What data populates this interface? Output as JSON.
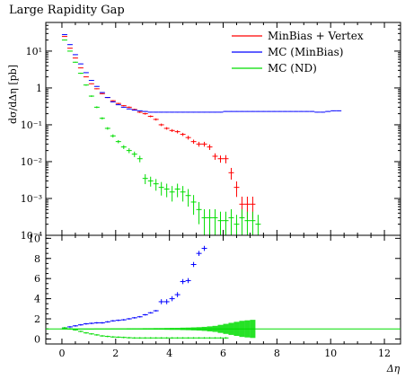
{
  "title": "Large Rapidity Gap",
  "chart_data": [
    {
      "type": "scatter",
      "panel": "main",
      "ylabel": "dσ/dΔη [pb]",
      "yscale": "log",
      "xlim": [
        -0.6,
        12.6
      ],
      "ylim": [
        0.0001,
        60
      ],
      "x_ticks": [
        0,
        2,
        4,
        6,
        8,
        10,
        12
      ],
      "y_ticks": [
        {
          "value": 0.0001,
          "label": "10⁻⁴"
        },
        {
          "value": 0.001,
          "label": "10⁻³"
        },
        {
          "value": 0.01,
          "label": "10⁻²"
        },
        {
          "value": 0.1,
          "label": "10⁻¹"
        },
        {
          "value": 1,
          "label": "1"
        },
        {
          "value": 10,
          "label": "10¹"
        }
      ],
      "legend_position": "top-right",
      "series": [
        {
          "name": "MinBias + Vertex",
          "color": "#ff0000",
          "x": [
            0.1,
            0.3,
            0.5,
            0.7,
            0.9,
            1.1,
            1.3,
            1.5,
            1.7,
            1.9,
            2.1,
            2.3,
            2.5,
            2.7,
            2.9,
            3.1,
            3.3,
            3.5,
            3.7,
            3.9,
            4.1,
            4.3,
            4.5,
            4.7,
            4.9,
            5.1,
            5.3,
            5.5,
            5.7,
            5.9,
            6.1,
            6.3,
            6.5,
            6.7,
            6.9,
            7.1
          ],
          "y": [
            25,
            12,
            6.5,
            3.5,
            2.0,
            1.3,
            0.95,
            0.7,
            0.55,
            0.45,
            0.38,
            0.33,
            0.3,
            0.26,
            0.22,
            0.2,
            0.17,
            0.14,
            0.1,
            0.08,
            0.07,
            0.065,
            0.055,
            0.045,
            0.035,
            0.03,
            0.03,
            0.025,
            0.014,
            0.012,
            0.012,
            0.005,
            0.002,
            0.0007,
            0.0007,
            0.0007
          ],
          "yerr_rel": [
            0.02,
            0.02,
            0.02,
            0.02,
            0.02,
            0.02,
            0.03,
            0.03,
            0.03,
            0.04,
            0.04,
            0.04,
            0.05,
            0.05,
            0.05,
            0.06,
            0.06,
            0.07,
            0.08,
            0.08,
            0.09,
            0.1,
            0.1,
            0.12,
            0.13,
            0.15,
            0.15,
            0.17,
            0.2,
            0.22,
            0.25,
            0.35,
            0.45,
            0.6,
            0.6,
            0.6
          ]
        },
        {
          "name": "MC (MinBias)",
          "color": "#0000ff",
          "x": [
            0.1,
            0.3,
            0.5,
            0.7,
            0.9,
            1.1,
            1.3,
            1.5,
            1.7,
            1.9,
            2.1,
            2.3,
            2.5,
            2.7,
            2.9,
            3.1,
            3.3,
            3.5,
            3.7,
            3.9,
            4.1,
            4.3,
            4.5,
            4.7,
            4.9,
            5.1,
            5.3,
            5.5,
            5.7,
            5.9,
            6.1,
            6.3,
            6.5,
            6.7,
            6.9,
            7.1,
            7.3,
            7.5,
            7.7,
            7.9,
            8.1,
            8.3,
            8.5,
            8.7,
            8.9,
            9.1,
            9.3,
            9.5,
            9.7,
            9.9,
            10.1,
            10.3
          ],
          "y": [
            28,
            15,
            8,
            4.5,
            2.6,
            1.6,
            1.1,
            0.75,
            0.55,
            0.42,
            0.35,
            0.3,
            0.27,
            0.25,
            0.24,
            0.23,
            0.22,
            0.22,
            0.22,
            0.22,
            0.22,
            0.22,
            0.22,
            0.22,
            0.22,
            0.22,
            0.22,
            0.22,
            0.22,
            0.22,
            0.23,
            0.23,
            0.23,
            0.23,
            0.23,
            0.23,
            0.23,
            0.23,
            0.23,
            0.23,
            0.23,
            0.23,
            0.23,
            0.23,
            0.23,
            0.23,
            0.23,
            0.22,
            0.22,
            0.23,
            0.24,
            0.24
          ]
        },
        {
          "name": "MC (ND)",
          "color": "#00dd00",
          "x": [
            0.1,
            0.3,
            0.5,
            0.7,
            0.9,
            1.1,
            1.3,
            1.5,
            1.7,
            1.9,
            2.1,
            2.3,
            2.5,
            2.7,
            2.9,
            3.1,
            3.3,
            3.5,
            3.7,
            3.9,
            4.1,
            4.3,
            4.5,
            4.7,
            4.9,
            5.1,
            5.3,
            5.5,
            5.7,
            5.9,
            6.1,
            6.3,
            6.5,
            6.7,
            6.9,
            7.1,
            7.3
          ],
          "y": [
            20,
            10,
            5,
            2.5,
            1.2,
            0.6,
            0.3,
            0.15,
            0.08,
            0.05,
            0.035,
            0.025,
            0.02,
            0.016,
            0.012,
            0.0035,
            0.003,
            0.0025,
            0.002,
            0.0018,
            0.0015,
            0.0018,
            0.0015,
            0.0012,
            0.0008,
            0.0005,
            0.0003,
            0.0003,
            0.0003,
            0.00025,
            0.00025,
            0.0003,
            0.0002,
            0.0003,
            0.00025,
            0.00025,
            0.0002
          ],
          "yerr_rel": [
            0.02,
            0.02,
            0.03,
            0.03,
            0.04,
            0.05,
            0.06,
            0.07,
            0.08,
            0.1,
            0.1,
            0.12,
            0.15,
            0.17,
            0.2,
            0.3,
            0.3,
            0.35,
            0.4,
            0.4,
            0.45,
            0.4,
            0.45,
            0.5,
            0.55,
            0.6,
            0.7,
            0.7,
            0.7,
            0.75,
            0.75,
            0.7,
            0.8,
            0.7,
            0.75,
            0.75,
            0.8
          ]
        }
      ]
    },
    {
      "type": "scatter",
      "panel": "ratio",
      "xlabel": "Δη",
      "xlim": [
        -0.6,
        12.6
      ],
      "ylim": [
        -0.5,
        10.3
      ],
      "x_ticks": [
        0,
        2,
        4,
        6,
        8,
        10,
        12
      ],
      "y_ticks": [
        0,
        2,
        4,
        6,
        8,
        10
      ],
      "reference_line": 1,
      "series": [
        {
          "name": "MC (MinBias)",
          "color": "#0000ff",
          "x": [
            0.1,
            0.3,
            0.5,
            0.7,
            0.9,
            1.1,
            1.3,
            1.5,
            1.7,
            1.9,
            2.1,
            2.3,
            2.5,
            2.7,
            2.9,
            3.1,
            3.3,
            3.5,
            3.7,
            3.9,
            4.1,
            4.3,
            4.5,
            4.7,
            4.9,
            5.1,
            5.3
          ],
          "y": [
            1.1,
            1.2,
            1.3,
            1.4,
            1.5,
            1.55,
            1.6,
            1.6,
            1.7,
            1.8,
            1.85,
            1.9,
            2.0,
            2.1,
            2.2,
            2.4,
            2.6,
            2.8,
            3.7,
            3.7,
            4.0,
            4.4,
            5.7,
            5.8,
            7.4,
            8.5,
            9.0
          ]
        },
        {
          "name": "MC (ND)",
          "color": "#00dd00",
          "x": [
            0.1,
            0.3,
            0.5,
            0.7,
            0.9,
            1.1,
            1.3,
            1.5,
            1.7,
            1.9,
            2.1,
            2.3,
            2.5,
            2.7,
            2.9,
            3.1,
            3.3,
            3.5,
            3.7,
            3.9,
            4.1,
            4.3,
            4.5,
            4.7,
            4.9,
            5.1,
            5.3,
            5.5,
            5.7,
            5.9,
            6.1
          ],
          "y": [
            1.1,
            1.0,
            0.9,
            0.75,
            0.6,
            0.5,
            0.4,
            0.3,
            0.25,
            0.2,
            0.18,
            0.15,
            0.12,
            0.1,
            0.1,
            0.1,
            0.1,
            0.1,
            0.1,
            0.1,
            0.1,
            0.1,
            0.1,
            0.1,
            0.1,
            0.1,
            0.1,
            0.1,
            0.1,
            0.1,
            0.1
          ]
        }
      ],
      "uncertainty_band": {
        "color": "#00dd00",
        "x": [
          0.1,
          0.3,
          0.5,
          0.7,
          0.9,
          1.1,
          1.3,
          1.5,
          1.7,
          1.9,
          2.1,
          2.3,
          2.5,
          2.7,
          2.9,
          3.1,
          3.3,
          3.5,
          3.7,
          3.9,
          4.1,
          4.3,
          4.5,
          4.7,
          4.9,
          5.1,
          5.3,
          5.5,
          5.7,
          5.9,
          6.1,
          6.3,
          6.5,
          6.7,
          6.9,
          7.1
        ],
        "half_width": [
          0.03,
          0.03,
          0.03,
          0.03,
          0.03,
          0.03,
          0.04,
          0.04,
          0.04,
          0.05,
          0.05,
          0.05,
          0.06,
          0.06,
          0.06,
          0.07,
          0.07,
          0.08,
          0.08,
          0.09,
          0.1,
          0.1,
          0.12,
          0.13,
          0.15,
          0.17,
          0.2,
          0.25,
          0.3,
          0.4,
          0.5,
          0.6,
          0.7,
          0.8,
          0.85,
          0.9
        ]
      }
    }
  ]
}
